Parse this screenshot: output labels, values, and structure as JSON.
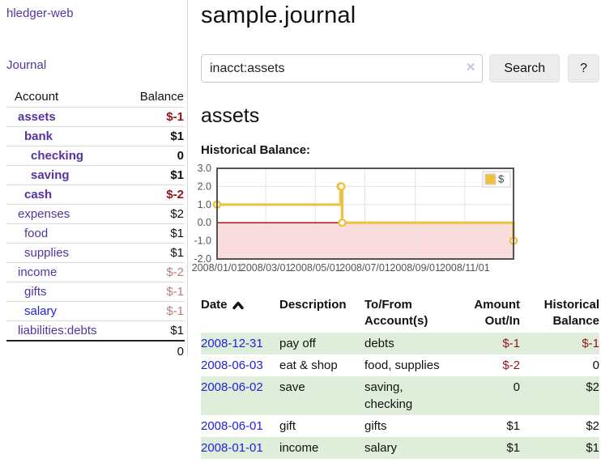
{
  "colors": {
    "link_purple": "#5633a0",
    "link_blue": "#2222d8",
    "negative_strong": "#941414",
    "negative_soft": "#b87e7e",
    "row_stripe_green": "#dfeeda",
    "chart_series_yellow": "#edc240",
    "chart_zero_line": "#a80000",
    "chart_negative_fill": "#fadcdc",
    "chart_border": "#545454"
  },
  "sidebar": {
    "brand": "hledger-web",
    "nav": {
      "journal": "Journal"
    },
    "accounts": {
      "headers": {
        "account": "Account",
        "balance": "Balance"
      },
      "rows": [
        {
          "account": "assets",
          "balance": "$-1",
          "depth": 1,
          "bold": true
        },
        {
          "account": "bank",
          "balance": "$1",
          "depth": 2,
          "bold": true
        },
        {
          "account": "checking",
          "balance": "0",
          "depth": 3,
          "bold": true
        },
        {
          "account": "saving",
          "balance": "$1",
          "depth": 3,
          "bold": true
        },
        {
          "account": "cash",
          "balance": "$-2",
          "depth": 2,
          "bold": true
        },
        {
          "account": "expenses",
          "balance": "$2",
          "depth": 1,
          "bold": false
        },
        {
          "account": "food",
          "balance": "$1",
          "depth": 2,
          "bold": false
        },
        {
          "account": "supplies",
          "balance": "$1",
          "depth": 2,
          "bold": false
        },
        {
          "account": "income",
          "balance": "$-2",
          "depth": 1,
          "bold": false
        },
        {
          "account": "gifts",
          "balance": "$-1",
          "depth": 2,
          "bold": false
        },
        {
          "account": "salary",
          "balance": "$-1",
          "depth": 2,
          "bold": false,
          "unvisited": true
        },
        {
          "account": "liabilities:debts",
          "balance": "$1",
          "depth": 1,
          "bold": false
        }
      ],
      "total": "0"
    }
  },
  "main": {
    "title": "sample.journal",
    "search": {
      "value": "inacct:assets",
      "clear_glyph": "✕",
      "search_button": "Search",
      "help_button": "?"
    },
    "account_heading": "assets",
    "chart_label": "Historical Balance:",
    "register": {
      "headers": [
        {
          "line1": "Date",
          "line2": ""
        },
        {
          "line1": "Description",
          "line2": ""
        },
        {
          "line1": "To/From",
          "line2": "Account(s)"
        },
        {
          "line1": "Amount",
          "line2": "Out/In"
        },
        {
          "line1": "Historical",
          "line2": "Balance"
        }
      ],
      "rows": [
        {
          "date": "2008-12-31",
          "description": "pay off",
          "accounts": "debts",
          "amount": "$-1",
          "balance": "$-1"
        },
        {
          "date": "2008-06-03",
          "description": "eat & shop",
          "accounts": "food, supplies",
          "amount": "$-2",
          "balance": "0"
        },
        {
          "date": "2008-06-02",
          "description": "save",
          "accounts": "saving, checking",
          "amount": "0",
          "balance": "$2"
        },
        {
          "date": "2008-06-01",
          "description": "gift",
          "accounts": "gifts",
          "amount": "$1",
          "balance": "$2"
        },
        {
          "date": "2008-01-01",
          "description": "income",
          "accounts": "salary",
          "amount": "$1",
          "balance": "$1"
        }
      ]
    }
  },
  "chart_data": {
    "type": "line",
    "step": true,
    "title": "Historical Balance:",
    "series": [
      {
        "name": "$",
        "color": "#edc240",
        "points": [
          [
            "2008-01-01",
            1
          ],
          [
            "2008-06-01",
            2
          ],
          [
            "2008-06-02",
            2
          ],
          [
            "2008-06-03",
            0
          ],
          [
            "2008-12-31",
            -1
          ]
        ]
      }
    ],
    "xlim": [
      "2008-01-01",
      "2008-12-31"
    ],
    "ylim": [
      -2,
      3
    ],
    "x_tick_dates": [
      "2008-01-01",
      "2008-03-01",
      "2008-05-01",
      "2008-07-01",
      "2008-09-01",
      "2008-11-01"
    ],
    "x_tick_labels": [
      "2008/01/01",
      "2008/03/01",
      "2008/05/01",
      "2008/07/01",
      "2008/09/01",
      "2008/11/01"
    ],
    "y_ticks": [
      3,
      2,
      1,
      0,
      -1,
      -2
    ],
    "grid": true,
    "legend_position": "top-right",
    "zero_line_color": "#a80000",
    "negative_region_fill": "#fadcdc"
  }
}
